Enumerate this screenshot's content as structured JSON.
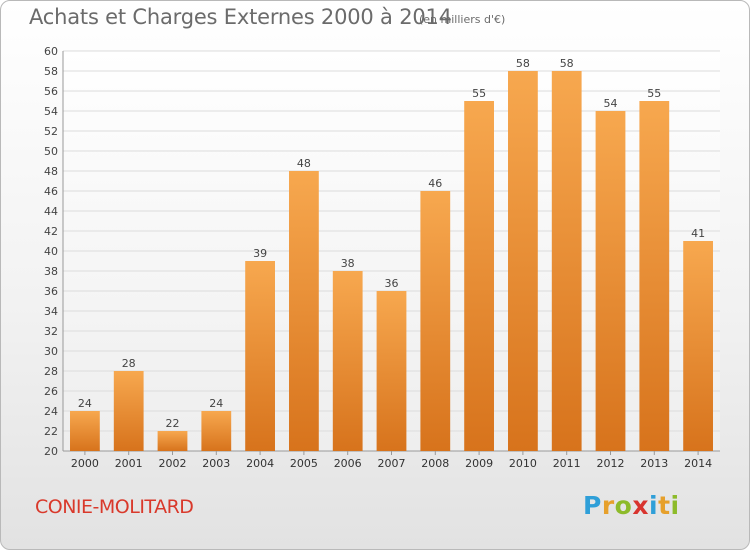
{
  "header": {
    "title": "Achats et Charges Externes 2000 à 2014",
    "unit": "(en milliers d'€)"
  },
  "footer": {
    "commune": "CONIE-MOLITARD",
    "logo_letters": [
      "P",
      "r",
      "o",
      "x",
      "i",
      "t",
      "i"
    ],
    "logo_colors": [
      "#2f9fd8",
      "#e6a02b",
      "#8dbb2a",
      "#d8342e",
      "#2f9fd8",
      "#e6a02b",
      "#8dbb2a"
    ]
  },
  "chart_data": {
    "type": "bar",
    "title": "Achats et Charges Externes 2000 à 2014",
    "subtitle": "(en milliers d'€)",
    "xlabel": "",
    "ylabel": "",
    "categories": [
      "2000",
      "2001",
      "2002",
      "2003",
      "2004",
      "2005",
      "2006",
      "2007",
      "2008",
      "2009",
      "2010",
      "2011",
      "2012",
      "2013",
      "2014"
    ],
    "values": [
      24,
      28,
      22,
      24,
      39,
      48,
      38,
      36,
      46,
      55,
      58,
      58,
      54,
      55,
      41
    ],
    "ylim": [
      20,
      60
    ],
    "ytick_step": 2,
    "grid": true,
    "data_labels": true,
    "bar_color_top": "#f7a84f",
    "bar_color_bottom": "#d7731c"
  }
}
